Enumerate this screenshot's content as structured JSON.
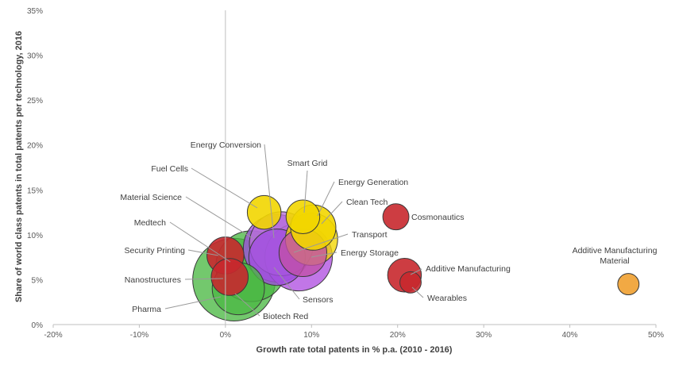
{
  "chart_data": {
    "type": "scatter",
    "subtype": "bubble",
    "title": "",
    "xlabel": "Growth rate total patents in % p.a.  (2010 - 2016)",
    "ylabel": "Share of world class patents in total patents per technology, 2016",
    "xlim": [
      -20,
      50
    ],
    "ylim": [
      0,
      35
    ],
    "x_ticks": [
      "-20%",
      "-10%",
      "0%",
      "10%",
      "20%",
      "30%",
      "40%",
      "50%"
    ],
    "y_ticks": [
      "0%",
      "5%",
      "10%",
      "15%",
      "20%",
      "25%",
      "30%",
      "35%"
    ],
    "grid": false,
    "legend": "none",
    "colors": {
      "yellow": "#f2d600",
      "orange": "#f0a030",
      "red": "#c8282d",
      "green": "#4cb844",
      "purple": "#a24fe0",
      "magenta": "#c24fa8",
      "leader": "#9a9a9a",
      "axis": "#bfbfbf"
    },
    "points": [
      {
        "name": "Energy Conversion",
        "x": 6.5,
        "y": 9.0,
        "size": 18,
        "color": "#b86fd8"
      },
      {
        "name": "Smart Grid",
        "x": 9.0,
        "y": 12.0,
        "size": 5,
        "color": "#f2d600"
      },
      {
        "name": "Energy Generation",
        "x": 10.2,
        "y": 10.8,
        "size": 9,
        "color": "#f2d600"
      },
      {
        "name": "Clean Tech",
        "x": 10.0,
        "y": 9.5,
        "size": 12,
        "color": "#f2d600"
      },
      {
        "name": "Fuel Cells",
        "x": 4.5,
        "y": 12.5,
        "size": 5,
        "color": "#f2d600"
      },
      {
        "name": "Material Science",
        "x": 6.0,
        "y": 8.5,
        "size": 20,
        "color": "#a24fe0"
      },
      {
        "name": "Medtech",
        "x": 3.0,
        "y": 6.5,
        "size": 22,
        "color": "#4cb844"
      },
      {
        "name": "Security Printing",
        "x": 0.0,
        "y": 7.7,
        "size": 6,
        "color": "#c8282d"
      },
      {
        "name": "Nanostructures",
        "x": 0.5,
        "y": 5.3,
        "size": 6,
        "color": "#c8282d"
      },
      {
        "name": "Pharma",
        "x": 1.0,
        "y": 5.0,
        "size": 30,
        "color": "#4cb844"
      },
      {
        "name": "Biotech Red",
        "x": 1.5,
        "y": 4.0,
        "size": 12,
        "color": "#4cb844"
      },
      {
        "name": "Sensors",
        "x": 6.0,
        "y": 7.5,
        "size": 14,
        "color": "#a24fe0"
      },
      {
        "name": "Transport",
        "x": 9.0,
        "y": 8.0,
        "size": 10,
        "color": "#c24fa8"
      },
      {
        "name": "Energy Storage",
        "x": 8.5,
        "y": 7.5,
        "size": 20,
        "color": "#b050e0"
      },
      {
        "name": "Cosmonautics",
        "x": 19.8,
        "y": 12.0,
        "size": 3,
        "color": "#c8282d"
      },
      {
        "name": "Additive Manufacturing",
        "x": 20.8,
        "y": 5.5,
        "size": 5,
        "color": "#c8282d"
      },
      {
        "name": "Wearables",
        "x": 21.5,
        "y": 4.7,
        "size": 2,
        "color": "#c8282d"
      },
      {
        "name": "Additive Manufacturing Material",
        "x": 46.8,
        "y": 4.5,
        "size": 2,
        "color": "#f0a030"
      }
    ]
  }
}
